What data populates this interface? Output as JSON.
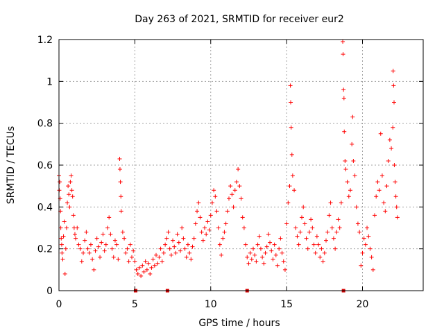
{
  "chart_data": {
    "type": "scatter",
    "title": "Day 263 of 2021, SRMTID for receiver eur2",
    "xlabel": "GPS time / hours",
    "ylabel": "SRMTID / TECUs",
    "xlim": [
      0,
      24
    ],
    "ylim": [
      0,
      1.2
    ],
    "xticks": [
      0,
      5,
      10,
      15,
      20
    ],
    "xtick_labels": [
      "0",
      "5",
      "10",
      "15",
      "20"
    ],
    "yticks": [
      0,
      0.2,
      0.4,
      0.6,
      0.8,
      1.0,
      1.2
    ],
    "ytick_labels": [
      "0",
      "0.2",
      "0.4",
      "0.6",
      "0.8",
      "1",
      "1.2"
    ],
    "grid": true,
    "marker": "+",
    "color": "#ff0000",
    "gap_marker_color": "#d40000",
    "gap_markers_x": [
      5.05,
      7.15,
      12.4,
      18.75
    ],
    "series": [
      {
        "name": "SRMTID",
        "points": [
          [
            0.0,
            0.55
          ],
          [
            0.02,
            0.48
          ],
          [
            0.05,
            0.52
          ],
          [
            0.08,
            0.44
          ],
          [
            0.1,
            0.38
          ],
          [
            0.12,
            0.3
          ],
          [
            0.15,
            0.25
          ],
          [
            0.18,
            0.22
          ],
          [
            0.2,
            0.18
          ],
          [
            0.25,
            0.15
          ],
          [
            0.3,
            0.26
          ],
          [
            0.35,
            0.33
          ],
          [
            0.4,
            0.08
          ],
          [
            0.45,
            0.2
          ],
          [
            0.5,
            0.3
          ],
          [
            0.55,
            0.42
          ],
          [
            0.6,
            0.5
          ],
          [
            0.65,
            0.46
          ],
          [
            0.7,
            0.4
          ],
          [
            0.75,
            0.52
          ],
          [
            0.8,
            0.55
          ],
          [
            0.85,
            0.48
          ],
          [
            0.9,
            0.45
          ],
          [
            0.95,
            0.36
          ],
          [
            1.0,
            0.3
          ],
          [
            1.05,
            0.27
          ],
          [
            1.1,
            0.25
          ],
          [
            1.2,
            0.3
          ],
          [
            1.3,
            0.22
          ],
          [
            1.4,
            0.2
          ],
          [
            1.5,
            0.14
          ],
          [
            1.6,
            0.18
          ],
          [
            1.7,
            0.24
          ],
          [
            1.8,
            0.28
          ],
          [
            1.9,
            0.2
          ],
          [
            2.0,
            0.18
          ],
          [
            2.1,
            0.22
          ],
          [
            2.2,
            0.15
          ],
          [
            2.3,
            0.1
          ],
          [
            2.4,
            0.19
          ],
          [
            2.5,
            0.25
          ],
          [
            2.6,
            0.21
          ],
          [
            2.7,
            0.16
          ],
          [
            2.8,
            0.23
          ],
          [
            2.9,
            0.27
          ],
          [
            3.0,
            0.19
          ],
          [
            3.1,
            0.22
          ],
          [
            3.2,
            0.3
          ],
          [
            3.3,
            0.35
          ],
          [
            3.4,
            0.27
          ],
          [
            3.5,
            0.2
          ],
          [
            3.6,
            0.16
          ],
          [
            3.7,
            0.24
          ],
          [
            3.8,
            0.22
          ],
          [
            3.9,
            0.15
          ],
          [
            4.0,
            0.63
          ],
          [
            4.02,
            0.58
          ],
          [
            4.05,
            0.52
          ],
          [
            4.08,
            0.45
          ],
          [
            4.1,
            0.38
          ],
          [
            4.2,
            0.28
          ],
          [
            4.3,
            0.25
          ],
          [
            4.4,
            0.18
          ],
          [
            4.5,
            0.2
          ],
          [
            4.6,
            0.14
          ],
          [
            4.7,
            0.22
          ],
          [
            4.8,
            0.16
          ],
          [
            4.9,
            0.19
          ],
          [
            5.0,
            0.14
          ],
          [
            5.1,
            0.1
          ],
          [
            5.2,
            0.08
          ],
          [
            5.3,
            0.11
          ],
          [
            5.4,
            0.07
          ],
          [
            5.5,
            0.12
          ],
          [
            5.6,
            0.09
          ],
          [
            5.7,
            0.14
          ],
          [
            5.8,
            0.1
          ],
          [
            5.9,
            0.13
          ],
          [
            6.0,
            0.08
          ],
          [
            6.1,
            0.11
          ],
          [
            6.2,
            0.15
          ],
          [
            6.3,
            0.12
          ],
          [
            6.4,
            0.17
          ],
          [
            6.5,
            0.13
          ],
          [
            6.6,
            0.16
          ],
          [
            6.7,
            0.2
          ],
          [
            6.8,
            0.14
          ],
          [
            6.9,
            0.18
          ],
          [
            7.0,
            0.22
          ],
          [
            7.1,
            0.25
          ],
          [
            7.2,
            0.28
          ],
          [
            7.3,
            0.2
          ],
          [
            7.4,
            0.17
          ],
          [
            7.5,
            0.24
          ],
          [
            7.6,
            0.21
          ],
          [
            7.7,
            0.18
          ],
          [
            7.8,
            0.27
          ],
          [
            7.9,
            0.23
          ],
          [
            8.0,
            0.19
          ],
          [
            8.1,
            0.3
          ],
          [
            8.2,
            0.25
          ],
          [
            8.3,
            0.2
          ],
          [
            8.4,
            0.16
          ],
          [
            8.5,
            0.22
          ],
          [
            8.6,
            0.18
          ],
          [
            8.7,
            0.15
          ],
          [
            8.8,
            0.21
          ],
          [
            8.9,
            0.25
          ],
          [
            9.0,
            0.32
          ],
          [
            9.1,
            0.38
          ],
          [
            9.2,
            0.42
          ],
          [
            9.3,
            0.35
          ],
          [
            9.4,
            0.28
          ],
          [
            9.5,
            0.24
          ],
          [
            9.6,
            0.3
          ],
          [
            9.7,
            0.27
          ],
          [
            9.8,
            0.33
          ],
          [
            9.9,
            0.29
          ],
          [
            10.0,
            0.36
          ],
          [
            10.1,
            0.42
          ],
          [
            10.2,
            0.48
          ],
          [
            10.3,
            0.45
          ],
          [
            10.4,
            0.38
          ],
          [
            10.5,
            0.3
          ],
          [
            10.6,
            0.22
          ],
          [
            10.7,
            0.17
          ],
          [
            10.8,
            0.25
          ],
          [
            10.9,
            0.28
          ],
          [
            11.0,
            0.32
          ],
          [
            11.1,
            0.38
          ],
          [
            11.2,
            0.44
          ],
          [
            11.3,
            0.5
          ],
          [
            11.4,
            0.46
          ],
          [
            11.5,
            0.4
          ],
          [
            11.6,
            0.48
          ],
          [
            11.7,
            0.52
          ],
          [
            11.8,
            0.58
          ],
          [
            11.9,
            0.5
          ],
          [
            12.0,
            0.44
          ],
          [
            12.1,
            0.35
          ],
          [
            12.2,
            0.3
          ],
          [
            12.3,
            0.22
          ],
          [
            12.4,
            0.16
          ],
          [
            12.5,
            0.13
          ],
          [
            12.6,
            0.18
          ],
          [
            12.7,
            0.15
          ],
          [
            12.8,
            0.2
          ],
          [
            12.9,
            0.17
          ],
          [
            13.0,
            0.14
          ],
          [
            13.1,
            0.22
          ],
          [
            13.2,
            0.26
          ],
          [
            13.3,
            0.2
          ],
          [
            13.4,
            0.16
          ],
          [
            13.5,
            0.13
          ],
          [
            13.6,
            0.18
          ],
          [
            13.7,
            0.21
          ],
          [
            13.8,
            0.27
          ],
          [
            13.9,
            0.23
          ],
          [
            14.0,
            0.19
          ],
          [
            14.1,
            0.15
          ],
          [
            14.2,
            0.22
          ],
          [
            14.3,
            0.17
          ],
          [
            14.4,
            0.12
          ],
          [
            14.5,
            0.2
          ],
          [
            14.6,
            0.25
          ],
          [
            14.7,
            0.18
          ],
          [
            14.8,
            0.14
          ],
          [
            14.9,
            0.1
          ],
          [
            15.0,
            0.32
          ],
          [
            15.1,
            0.42
          ],
          [
            15.2,
            0.5
          ],
          [
            15.25,
            0.98
          ],
          [
            15.27,
            0.9
          ],
          [
            15.3,
            0.78
          ],
          [
            15.35,
            0.65
          ],
          [
            15.4,
            0.55
          ],
          [
            15.5,
            0.48
          ],
          [
            15.6,
            0.3
          ],
          [
            15.7,
            0.26
          ],
          [
            15.8,
            0.22
          ],
          [
            15.9,
            0.28
          ],
          [
            16.0,
            0.35
          ],
          [
            16.1,
            0.4
          ],
          [
            16.2,
            0.32
          ],
          [
            16.3,
            0.25
          ],
          [
            16.4,
            0.2
          ],
          [
            16.5,
            0.28
          ],
          [
            16.6,
            0.34
          ],
          [
            16.7,
            0.3
          ],
          [
            16.8,
            0.22
          ],
          [
            16.9,
            0.18
          ],
          [
            17.0,
            0.26
          ],
          [
            17.1,
            0.22
          ],
          [
            17.2,
            0.16
          ],
          [
            17.3,
            0.2
          ],
          [
            17.4,
            0.14
          ],
          [
            17.5,
            0.18
          ],
          [
            17.6,
            0.24
          ],
          [
            17.7,
            0.28
          ],
          [
            17.8,
            0.36
          ],
          [
            17.9,
            0.42
          ],
          [
            18.0,
            0.3
          ],
          [
            18.1,
            0.25
          ],
          [
            18.2,
            0.2
          ],
          [
            18.3,
            0.28
          ],
          [
            18.4,
            0.34
          ],
          [
            18.5,
            0.3
          ],
          [
            18.6,
            0.42
          ],
          [
            18.7,
            1.19
          ],
          [
            18.72,
            1.13
          ],
          [
            18.75,
            0.96
          ],
          [
            18.78,
            0.92
          ],
          [
            18.8,
            0.76
          ],
          [
            18.85,
            0.62
          ],
          [
            18.9,
            0.58
          ],
          [
            19.0,
            0.52
          ],
          [
            19.1,
            0.45
          ],
          [
            19.2,
            0.48
          ],
          [
            19.3,
            0.7
          ],
          [
            19.35,
            0.83
          ],
          [
            19.4,
            0.62
          ],
          [
            19.5,
            0.55
          ],
          [
            19.6,
            0.4
          ],
          [
            19.7,
            0.32
          ],
          [
            19.8,
            0.28
          ],
          [
            19.9,
            0.12
          ],
          [
            20.0,
            0.18
          ],
          [
            20.1,
            0.25
          ],
          [
            20.2,
            0.22
          ],
          [
            20.3,
            0.3
          ],
          [
            20.4,
            0.26
          ],
          [
            20.5,
            0.2
          ],
          [
            20.6,
            0.16
          ],
          [
            20.7,
            0.1
          ],
          [
            20.8,
            0.36
          ],
          [
            20.9,
            0.45
          ],
          [
            21.0,
            0.52
          ],
          [
            21.1,
            0.48
          ],
          [
            21.2,
            0.75
          ],
          [
            21.3,
            0.55
          ],
          [
            21.4,
            0.42
          ],
          [
            21.5,
            0.38
          ],
          [
            21.6,
            0.5
          ],
          [
            21.7,
            0.62
          ],
          [
            21.8,
            0.72
          ],
          [
            21.9,
            0.68
          ],
          [
            22.0,
            0.78
          ],
          [
            22.02,
            1.05
          ],
          [
            22.05,
            0.98
          ],
          [
            22.08,
            0.9
          ],
          [
            22.1,
            0.6
          ],
          [
            22.15,
            0.52
          ],
          [
            22.2,
            0.45
          ],
          [
            22.25,
            0.4
          ],
          [
            22.3,
            0.35
          ]
        ]
      }
    ]
  }
}
